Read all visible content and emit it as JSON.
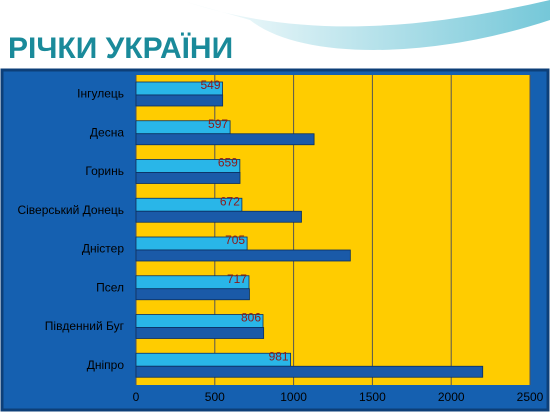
{
  "chart_data": {
    "type": "hbar",
    "title": "РІЧКИ УКРАЇНИ",
    "categories": [
      "Інгулець",
      "Десна",
      "Горинь",
      "Сіверський Донець",
      "Дністер",
      "Псел",
      "Південний Буг",
      "Дніпро"
    ],
    "series": [
      {
        "color": "#29b6e8",
        "values": [
          549,
          597,
          659,
          672,
          705,
          717,
          806,
          981
        ]
      },
      {
        "color": "#1a5aa8",
        "values": [
          550,
          1130,
          660,
          1050,
          1360,
          720,
          810,
          2200
        ]
      }
    ],
    "xlim": [
      0,
      2500
    ],
    "xticks": [
      0,
      500,
      1000,
      1500,
      2000,
      2500
    ],
    "grid": true
  }
}
